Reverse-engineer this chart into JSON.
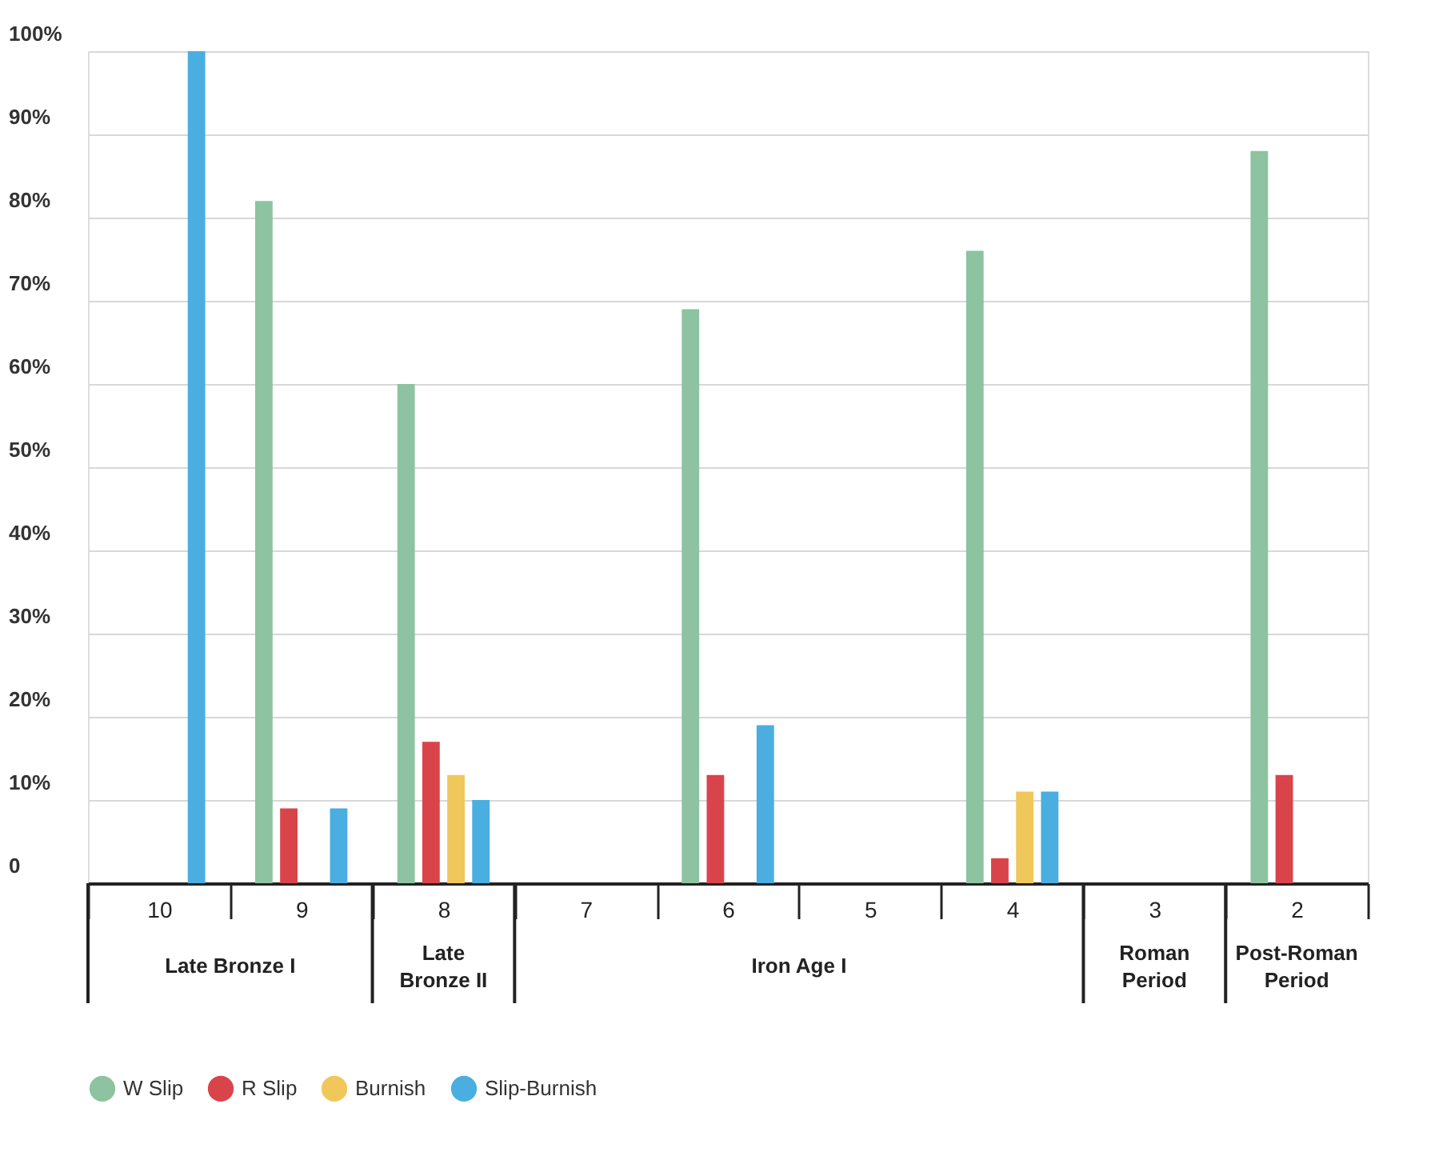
{
  "chart_data": {
    "type": "bar",
    "categories": [
      "10",
      "9",
      "8",
      "7",
      "6",
      "5",
      "4",
      "3",
      "2"
    ],
    "series": [
      {
        "name": "W Slip",
        "color": "#8dc3a0",
        "values": [
          null,
          82,
          60,
          null,
          69,
          null,
          76,
          null,
          88
        ]
      },
      {
        "name": "R Slip",
        "color": "#d9444a",
        "values": [
          null,
          9,
          17,
          null,
          13,
          null,
          3,
          null,
          13
        ]
      },
      {
        "name": "Burnish",
        "color": "#f0c75a",
        "values": [
          null,
          null,
          13,
          null,
          null,
          null,
          11,
          null,
          null
        ]
      },
      {
        "name": "Slip-Burnish",
        "color": "#4aaee0",
        "values": [
          100,
          9,
          10,
          null,
          19,
          null,
          11,
          null,
          null
        ]
      }
    ],
    "ylim": [
      0,
      100
    ],
    "yticks": [
      0,
      {
        "value": 10,
        "label": "10%"
      },
      {
        "value": 20,
        "label": "20%"
      },
      {
        "value": 30,
        "label": "30%"
      },
      {
        "value": 40,
        "label": "40%"
      },
      {
        "value": 50,
        "label": "50%"
      },
      {
        "value": 60,
        "label": "60%"
      },
      {
        "value": 70,
        "label": "70%"
      },
      {
        "value": 80,
        "label": "80%"
      },
      {
        "value": 90,
        "label": "90%"
      },
      {
        "value": 100,
        "label": "100%"
      }
    ],
    "annotations": [
      "Late Bronze I",
      "Late Bronze II",
      "Iron Age I",
      "Roman Period",
      "Post-Roman Period"
    ],
    "grid": "y",
    "legend": "bottom"
  }
}
